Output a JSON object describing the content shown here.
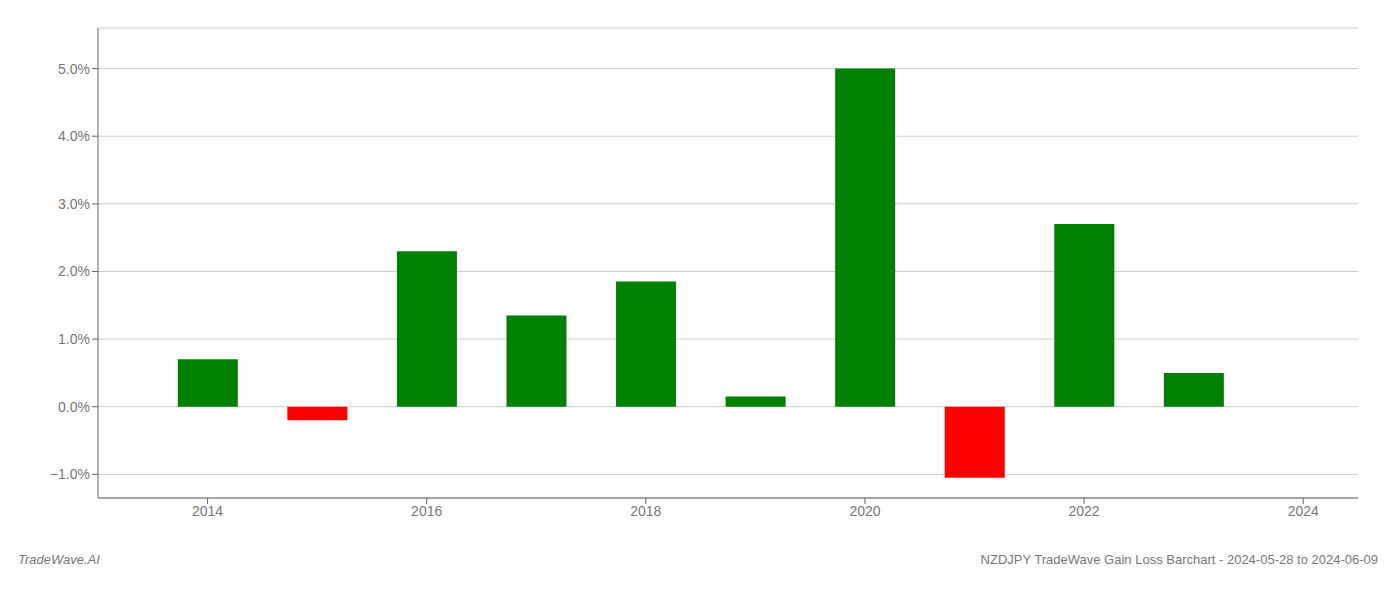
{
  "chart_data": {
    "type": "bar",
    "x": [
      2014,
      2015,
      2016,
      2017,
      2018,
      2019,
      2020,
      2021,
      2022,
      2023
    ],
    "values": [
      0.007,
      -0.002,
      0.023,
      0.0135,
      0.0185,
      0.0015,
      0.05,
      -0.0105,
      0.027,
      0.005
    ],
    "colors": [
      "#008000",
      "#ff0000",
      "#008000",
      "#008000",
      "#008000",
      "#008000",
      "#008000",
      "#ff0000",
      "#008000",
      "#008000"
    ],
    "xlim": [
      2013.0,
      2024.5
    ],
    "ylim": [
      -0.0135,
      0.056
    ],
    "xticks": [
      2014,
      2016,
      2018,
      2020,
      2022,
      2024
    ],
    "yticks": [
      {
        "value": -0.01,
        "label": "−1.0%"
      },
      {
        "value": 0.0,
        "label": "0.0%"
      },
      {
        "value": 0.01,
        "label": "1.0%"
      },
      {
        "value": 0.02,
        "label": "2.0%"
      },
      {
        "value": 0.03,
        "label": "3.0%"
      },
      {
        "value": 0.04,
        "label": "4.0%"
      },
      {
        "value": 0.05,
        "label": "5.0%"
      }
    ],
    "grid": true,
    "annotations": [
      "TradeWave.AI",
      "NZDJPY TradeWave Gain Loss Barchart - 2024-05-28 to 2024-06-09"
    ]
  }
}
